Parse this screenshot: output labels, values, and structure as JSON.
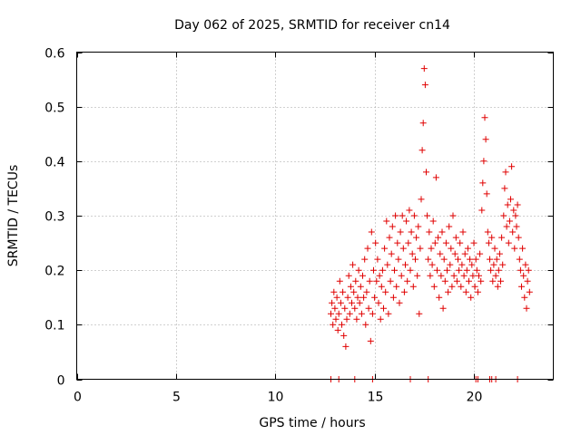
{
  "chart_data": {
    "type": "scatter",
    "title": "Day 062 of 2025, SRMTID for receiver cn14",
    "xlabel": "GPS time / hours",
    "ylabel": "SRMTID / TECUs",
    "xlim": [
      0,
      24
    ],
    "ylim": [
      0,
      0.6
    ],
    "xticks": [
      0,
      5,
      10,
      15,
      20
    ],
    "xtick_labels": [
      "0",
      "5",
      "10",
      "15",
      "20"
    ],
    "yticks": [
      0,
      0.1,
      0.2,
      0.3,
      0.4,
      0.5,
      0.6
    ],
    "ytick_labels": [
      "0",
      "0.1",
      "0.2",
      "0.3",
      "0.4",
      "0.5",
      "0.6"
    ],
    "grid": true,
    "marker": "plus",
    "colors": {
      "points": "#e00000",
      "grid": "#a0a0a0",
      "frame": "#000000"
    },
    "series": [
      {
        "name": "SRMTID",
        "points": [
          [
            12.8,
            0.12
          ],
          [
            12.85,
            0.14
          ],
          [
            12.9,
            0.1
          ],
          [
            12.95,
            0.16
          ],
          [
            13.0,
            0.13
          ],
          [
            13.05,
            0.11
          ],
          [
            13.1,
            0.15
          ],
          [
            13.15,
            0.09
          ],
          [
            13.2,
            0.12
          ],
          [
            13.25,
            0.18
          ],
          [
            13.3,
            0.14
          ],
          [
            13.35,
            0.1
          ],
          [
            13.4,
            0.16
          ],
          [
            13.45,
            0.08
          ],
          [
            13.5,
            0.13
          ],
          [
            13.55,
            0.06
          ],
          [
            13.6,
            0.11
          ],
          [
            13.65,
            0.15
          ],
          [
            13.7,
            0.19
          ],
          [
            13.75,
            0.12
          ],
          [
            13.8,
            0.17
          ],
          [
            13.85,
            0.14
          ],
          [
            13.9,
            0.21
          ],
          [
            13.95,
            0.16
          ],
          [
            14.0,
            0.13
          ],
          [
            14.05,
            0.18
          ],
          [
            14.1,
            0.11
          ],
          [
            14.15,
            0.15
          ],
          [
            14.2,
            0.2
          ],
          [
            14.25,
            0.14
          ],
          [
            14.3,
            0.17
          ],
          [
            14.35,
            0.12
          ],
          [
            14.4,
            0.19
          ],
          [
            14.45,
            0.15
          ],
          [
            14.5,
            0.22
          ],
          [
            14.55,
            0.1
          ],
          [
            14.6,
            0.16
          ],
          [
            14.65,
            0.24
          ],
          [
            14.7,
            0.13
          ],
          [
            14.75,
            0.18
          ],
          [
            14.8,
            0.07
          ],
          [
            14.85,
            0.27
          ],
          [
            14.9,
            0.12
          ],
          [
            14.95,
            0.2
          ],
          [
            15.0,
            0.15
          ],
          [
            15.05,
            0.25
          ],
          [
            15.1,
            0.18
          ],
          [
            15.15,
            0.22
          ],
          [
            15.2,
            0.14
          ],
          [
            15.25,
            0.19
          ],
          [
            15.3,
            0.11
          ],
          [
            15.35,
            0.17
          ],
          [
            15.4,
            0.2
          ],
          [
            15.45,
            0.13
          ],
          [
            15.5,
            0.24
          ],
          [
            15.55,
            0.16
          ],
          [
            15.6,
            0.29
          ],
          [
            15.65,
            0.21
          ],
          [
            15.7,
            0.12
          ],
          [
            15.75,
            0.26
          ],
          [
            15.8,
            0.18
          ],
          [
            15.85,
            0.23
          ],
          [
            15.9,
            0.28
          ],
          [
            15.95,
            0.15
          ],
          [
            16.0,
            0.2
          ],
          [
            16.05,
            0.3
          ],
          [
            16.1,
            0.17
          ],
          [
            16.15,
            0.25
          ],
          [
            16.2,
            0.22
          ],
          [
            16.25,
            0.14
          ],
          [
            16.3,
            0.27
          ],
          [
            16.35,
            0.19
          ],
          [
            16.4,
            0.3
          ],
          [
            16.45,
            0.24
          ],
          [
            16.5,
            0.16
          ],
          [
            16.55,
            0.21
          ],
          [
            16.6,
            0.29
          ],
          [
            16.65,
            0.18
          ],
          [
            16.7,
            0.25
          ],
          [
            16.75,
            0.31
          ],
          [
            16.8,
            0.2
          ],
          [
            16.85,
            0.27
          ],
          [
            16.9,
            0.23
          ],
          [
            16.95,
            0.17
          ],
          [
            17.0,
            0.3
          ],
          [
            17.05,
            0.22
          ],
          [
            17.1,
            0.26
          ],
          [
            17.15,
            0.19
          ],
          [
            17.2,
            0.28
          ],
          [
            17.25,
            0.12
          ],
          [
            17.3,
            0.24
          ],
          [
            17.35,
            0.33
          ],
          [
            17.4,
            0.42
          ],
          [
            17.45,
            0.47
          ],
          [
            17.5,
            0.57
          ],
          [
            17.55,
            0.54
          ],
          [
            17.6,
            0.38
          ],
          [
            17.65,
            0.3
          ],
          [
            17.7,
            0.22
          ],
          [
            17.75,
            0.27
          ],
          [
            17.8,
            0.19
          ],
          [
            17.85,
            0.24
          ],
          [
            17.9,
            0.21
          ],
          [
            17.95,
            0.29
          ],
          [
            18.0,
            0.17
          ],
          [
            18.05,
            0.25
          ],
          [
            18.1,
            0.37
          ],
          [
            18.15,
            0.2
          ],
          [
            18.2,
            0.26
          ],
          [
            18.25,
            0.15
          ],
          [
            18.3,
            0.23
          ],
          [
            18.35,
            0.19
          ],
          [
            18.4,
            0.27
          ],
          [
            18.45,
            0.13
          ],
          [
            18.5,
            0.22
          ],
          [
            18.55,
            0.18
          ],
          [
            18.6,
            0.25
          ],
          [
            18.65,
            0.2
          ],
          [
            18.7,
            0.16
          ],
          [
            18.75,
            0.28
          ],
          [
            18.8,
            0.21
          ],
          [
            18.85,
            0.24
          ],
          [
            18.9,
            0.17
          ],
          [
            18.95,
            0.3
          ],
          [
            19.0,
            0.19
          ],
          [
            19.05,
            0.23
          ],
          [
            19.1,
            0.26
          ],
          [
            19.15,
            0.18
          ],
          [
            19.2,
            0.22
          ],
          [
            19.25,
            0.2
          ],
          [
            19.3,
            0.25
          ],
          [
            19.35,
            0.17
          ],
          [
            19.4,
            0.21
          ],
          [
            19.45,
            0.27
          ],
          [
            19.5,
            0.19
          ],
          [
            19.55,
            0.23
          ],
          [
            19.6,
            0.16
          ],
          [
            19.65,
            0.2
          ],
          [
            19.7,
            0.24
          ],
          [
            19.75,
            0.18
          ],
          [
            19.8,
            0.22
          ],
          [
            19.85,
            0.15
          ],
          [
            19.9,
            0.21
          ],
          [
            19.95,
            0.19
          ],
          [
            20.0,
            0.25
          ],
          [
            20.05,
            0.17
          ],
          [
            20.1,
            0.22
          ],
          [
            20.15,
            0.2
          ],
          [
            20.2,
            0.16
          ],
          [
            20.25,
            0.19
          ],
          [
            20.3,
            0.23
          ],
          [
            20.35,
            0.18
          ],
          [
            20.4,
            0.31
          ],
          [
            20.45,
            0.36
          ],
          [
            20.5,
            0.4
          ],
          [
            20.55,
            0.48
          ],
          [
            20.6,
            0.44
          ],
          [
            20.65,
            0.34
          ],
          [
            20.7,
            0.27
          ],
          [
            20.75,
            0.25
          ],
          [
            20.8,
            0.22
          ],
          [
            20.85,
            0.2
          ],
          [
            20.9,
            0.26
          ],
          [
            20.95,
            0.18
          ],
          [
            21.0,
            0.21
          ],
          [
            21.05,
            0.24
          ],
          [
            21.1,
            0.19
          ],
          [
            21.15,
            0.22
          ],
          [
            21.2,
            0.17
          ],
          [
            21.25,
            0.2
          ],
          [
            21.3,
            0.23
          ],
          [
            21.35,
            0.18
          ],
          [
            21.4,
            0.26
          ],
          [
            21.45,
            0.21
          ],
          [
            21.5,
            0.3
          ],
          [
            21.55,
            0.35
          ],
          [
            21.6,
            0.38
          ],
          [
            21.65,
            0.28
          ],
          [
            21.7,
            0.32
          ],
          [
            21.75,
            0.25
          ],
          [
            21.8,
            0.29
          ],
          [
            21.85,
            0.33
          ],
          [
            21.9,
            0.39
          ],
          [
            21.95,
            0.27
          ],
          [
            22.0,
            0.31
          ],
          [
            22.05,
            0.24
          ],
          [
            22.1,
            0.3
          ],
          [
            22.15,
            0.28
          ],
          [
            22.2,
            0.32
          ],
          [
            22.25,
            0.26
          ],
          [
            22.3,
            0.22
          ],
          [
            22.35,
            0.2
          ],
          [
            22.4,
            0.17
          ],
          [
            22.45,
            0.24
          ],
          [
            22.5,
            0.19
          ],
          [
            22.55,
            0.15
          ],
          [
            22.6,
            0.21
          ],
          [
            22.65,
            0.13
          ],
          [
            22.7,
            0.18
          ],
          [
            22.75,
            0.2
          ],
          [
            22.8,
            0.16
          ],
          [
            12.8,
            0.0
          ],
          [
            13.2,
            0.0
          ],
          [
            14.0,
            0.0
          ],
          [
            14.9,
            0.0
          ],
          [
            16.8,
            0.0
          ],
          [
            17.7,
            0.0
          ],
          [
            20.1,
            0.0
          ],
          [
            20.2,
            0.0
          ],
          [
            20.8,
            0.0
          ],
          [
            20.9,
            0.0
          ],
          [
            21.1,
            0.0
          ],
          [
            22.2,
            0.0
          ]
        ]
      }
    ]
  }
}
